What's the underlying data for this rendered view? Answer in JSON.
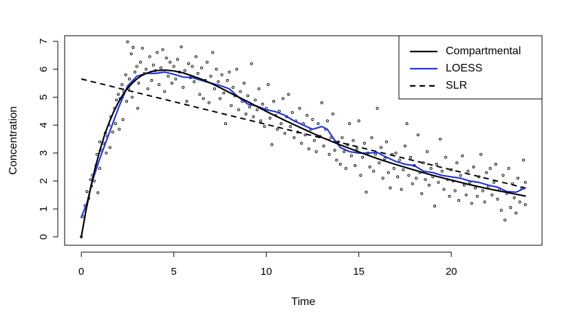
{
  "chart_data": {
    "type": "scatter",
    "title": "",
    "xlabel": "Time",
    "ylabel": "Concentration",
    "xlim": [
      -0.9,
      24.9
    ],
    "ylim": [
      -0.3,
      7.2
    ],
    "xticks": [
      0,
      5,
      10,
      15,
      20
    ],
    "yticks": [
      0,
      1,
      2,
      3,
      4,
      5,
      6,
      7
    ],
    "grid": false,
    "legend_position": "top-right",
    "series": [
      {
        "name": "Compartmental",
        "kind": "line",
        "style": "solid",
        "color": "#000000",
        "x": [
          0,
          0.25,
          0.5,
          0.75,
          1,
          1.25,
          1.5,
          1.75,
          2,
          2.25,
          2.5,
          2.75,
          3,
          3.25,
          3.5,
          3.75,
          4,
          4.5,
          5,
          5.5,
          6,
          6.5,
          7,
          7.5,
          8,
          9,
          10,
          11,
          12,
          13,
          14,
          15,
          16,
          17,
          18,
          19,
          20,
          21,
          22,
          23,
          24
        ],
        "y": [
          0,
          0.93,
          1.75,
          2.47,
          3.09,
          3.63,
          4.09,
          4.48,
          4.81,
          5.09,
          5.32,
          5.5,
          5.65,
          5.77,
          5.85,
          5.91,
          5.95,
          5.97,
          5.94,
          5.87,
          5.76,
          5.64,
          5.5,
          5.34,
          5.17,
          4.84,
          4.49,
          4.17,
          3.86,
          3.56,
          3.29,
          3.04,
          2.8,
          2.59,
          2.39,
          2.2,
          2.03,
          1.87,
          1.72,
          1.59,
          1.46
        ]
      },
      {
        "name": "LOESS",
        "kind": "line",
        "style": "solid",
        "color": "#2233dd",
        "x": [
          0,
          0.3,
          0.6,
          1,
          1.5,
          2,
          2.5,
          3,
          3.5,
          4,
          4.5,
          5,
          5.5,
          6,
          6.5,
          7,
          7.5,
          8,
          8.5,
          9,
          9.5,
          10,
          10.5,
          11,
          11.5,
          12,
          12.5,
          13,
          13.3,
          13.6,
          14,
          14.5,
          15,
          15.5,
          16,
          16.5,
          17,
          17.5,
          18,
          18.5,
          19,
          19.5,
          20,
          20.5,
          21,
          21.5,
          22,
          22.5,
          23,
          23.5,
          24
        ],
        "y": [
          0.7,
          1.2,
          2.0,
          2.8,
          3.7,
          4.6,
          5.4,
          5.75,
          5.85,
          5.85,
          5.9,
          5.82,
          5.72,
          5.7,
          5.6,
          5.5,
          5.42,
          5.3,
          5.0,
          4.75,
          4.68,
          4.55,
          4.48,
          4.35,
          4.15,
          4.0,
          3.85,
          3.95,
          3.85,
          3.55,
          3.2,
          3.05,
          3.0,
          3.0,
          3.02,
          2.85,
          2.7,
          2.6,
          2.55,
          2.35,
          2.3,
          2.2,
          2.15,
          2.1,
          2.0,
          1.95,
          1.85,
          1.78,
          1.62,
          1.6,
          1.75
        ]
      },
      {
        "name": "SLR",
        "kind": "line",
        "style": "dashed",
        "color": "#000000",
        "x": [
          0,
          24
        ],
        "y": [
          5.65,
          1.75
        ]
      }
    ],
    "points_color": "#000000",
    "points": [
      [
        0,
        0
      ],
      [
        0.1,
        0.72
      ],
      [
        0.2,
        1.12
      ],
      [
        0.3,
        1.62
      ],
      [
        0.4,
        1.38
      ],
      [
        0.5,
        2.05
      ],
      [
        0.55,
        1.82
      ],
      [
        0.6,
        2.2
      ],
      [
        0.7,
        2.0
      ],
      [
        0.8,
        2.55
      ],
      [
        0.85,
        2.95
      ],
      [
        0.9,
        1.58
      ],
      [
        1.0,
        3.4
      ],
      [
        1.0,
        2.45
      ],
      [
        1.1,
        3.1
      ],
      [
        1.2,
        3.35
      ],
      [
        1.3,
        3.72
      ],
      [
        1.35,
        3.0
      ],
      [
        1.4,
        3.6
      ],
      [
        1.5,
        4.0
      ],
      [
        1.55,
        3.2
      ],
      [
        1.6,
        4.3
      ],
      [
        1.7,
        3.75
      ],
      [
        1.8,
        4.6
      ],
      [
        1.85,
        4.05
      ],
      [
        1.9,
        4.9
      ],
      [
        2.0,
        5.1
      ],
      [
        2.05,
        3.85
      ],
      [
        2.1,
        4.95
      ],
      [
        2.2,
        5.45
      ],
      [
        2.25,
        4.2
      ],
      [
        2.3,
        5.2
      ],
      [
        2.4,
        5.8
      ],
      [
        2.45,
        4.85
      ],
      [
        2.5,
        6.98
      ],
      [
        2.55,
        5.3
      ],
      [
        2.6,
        5.65
      ],
      [
        2.7,
        6.55
      ],
      [
        2.75,
        5.0
      ],
      [
        2.8,
        6.78
      ],
      [
        2.9,
        5.9
      ],
      [
        3.0,
        6.1
      ],
      [
        3.05,
        4.6
      ],
      [
        3.1,
        5.5
      ],
      [
        3.2,
        6.25
      ],
      [
        3.3,
        6.75
      ],
      [
        3.4,
        5.85
      ],
      [
        3.5,
        6.0
      ],
      [
        3.6,
        5.3
      ],
      [
        3.7,
        6.45
      ],
      [
        3.8,
        5.6
      ],
      [
        3.9,
        6.15
      ],
      [
        4.0,
        5.95
      ],
      [
        4.1,
        6.6
      ],
      [
        4.2,
        5.45
      ],
      [
        4.3,
        6.05
      ],
      [
        4.4,
        6.7
      ],
      [
        4.5,
        5.2
      ],
      [
        4.6,
        6.4
      ],
      [
        4.7,
        5.75
      ],
      [
        4.8,
        6.25
      ],
      [
        4.9,
        5.5
      ],
      [
        5.0,
        6.1
      ],
      [
        5.1,
        5.65
      ],
      [
        5.2,
        6.35
      ],
      [
        5.3,
        5.9
      ],
      [
        5.4,
        6.8
      ],
      [
        5.5,
        5.35
      ],
      [
        5.6,
        5.95
      ],
      [
        5.7,
        4.85
      ],
      [
        5.8,
        6.2
      ],
      [
        5.9,
        5.7
      ],
      [
        6.0,
        6.1
      ],
      [
        6.1,
        5.55
      ],
      [
        6.2,
        6.45
      ],
      [
        6.3,
        5.85
      ],
      [
        6.4,
        5.1
      ],
      [
        6.5,
        6.05
      ],
      [
        6.6,
        4.95
      ],
      [
        6.7,
        5.6
      ],
      [
        6.8,
        6.25
      ],
      [
        6.9,
        4.8
      ],
      [
        7.0,
        5.75
      ],
      [
        7.1,
        6.6
      ],
      [
        7.2,
        5.3
      ],
      [
        7.3,
        6.0
      ],
      [
        7.4,
        5.55
      ],
      [
        7.5,
        4.95
      ],
      [
        7.6,
        5.8
      ],
      [
        7.7,
        5.15
      ],
      [
        7.8,
        4.05
      ],
      [
        7.9,
        5.6
      ],
      [
        8.0,
        5.9
      ],
      [
        8.1,
        4.7
      ],
      [
        8.2,
        5.35
      ],
      [
        8.3,
        5.05
      ],
      [
        8.4,
        6.0
      ],
      [
        8.5,
        4.55
      ],
      [
        8.6,
        5.2
      ],
      [
        8.7,
        4.85
      ],
      [
        8.8,
        5.5
      ],
      [
        8.9,
        4.4
      ],
      [
        9.0,
        5.05
      ],
      [
        9.1,
        4.65
      ],
      [
        9.2,
        6.2
      ],
      [
        9.3,
        4.3
      ],
      [
        9.4,
        4.9
      ],
      [
        9.5,
        4.55
      ],
      [
        9.6,
        5.3
      ],
      [
        9.7,
        4.15
      ],
      [
        9.8,
        4.75
      ],
      [
        9.9,
        3.95
      ],
      [
        10.0,
        4.6
      ],
      [
        10.1,
        5.45
      ],
      [
        10.2,
        4.25
      ],
      [
        10.3,
        3.3
      ],
      [
        10.4,
        4.85
      ],
      [
        10.5,
        4.35
      ],
      [
        10.6,
        3.85
      ],
      [
        10.7,
        4.5
      ],
      [
        10.8,
        4.05
      ],
      [
        10.9,
        4.95
      ],
      [
        11.0,
        3.7
      ],
      [
        11.1,
        4.3
      ],
      [
        11.2,
        5.1
      ],
      [
        11.3,
        3.95
      ],
      [
        11.4,
        4.45
      ],
      [
        11.5,
        3.55
      ],
      [
        11.6,
        4.15
      ],
      [
        11.7,
        3.75
      ],
      [
        11.8,
        4.6
      ],
      [
        11.9,
        3.35
      ],
      [
        12.0,
        4.05
      ],
      [
        12.1,
        3.65
      ],
      [
        12.2,
        4.35
      ],
      [
        12.3,
        3.15
      ],
      [
        12.4,
        3.85
      ],
      [
        12.5,
        4.2
      ],
      [
        12.6,
        3.45
      ],
      [
        12.7,
        3.05
      ],
      [
        12.8,
        4.05
      ],
      [
        12.9,
        3.6
      ],
      [
        13.0,
        4.8
      ],
      [
        13.1,
        3.25
      ],
      [
        13.2,
        3.85
      ],
      [
        13.3,
        4.15
      ],
      [
        13.4,
        2.95
      ],
      [
        13.5,
        3.55
      ],
      [
        13.6,
        4.4
      ],
      [
        13.7,
        3.1
      ],
      [
        13.8,
        2.75
      ],
      [
        13.9,
        3.4
      ],
      [
        14.0,
        2.6
      ],
      [
        14.1,
        3.55
      ],
      [
        14.2,
        3.05
      ],
      [
        14.3,
        2.45
      ],
      [
        14.4,
        3.3
      ],
      [
        14.5,
        4.05
      ],
      [
        14.6,
        2.9
      ],
      [
        14.7,
        3.45
      ],
      [
        14.8,
        2.55
      ],
      [
        14.9,
        3.15
      ],
      [
        15.0,
        4.15
      ],
      [
        15.1,
        2.2
      ],
      [
        15.2,
        2.85
      ],
      [
        15.3,
        3.35
      ],
      [
        15.4,
        1.6
      ],
      [
        15.5,
        3.0
      ],
      [
        15.6,
        2.5
      ],
      [
        15.7,
        3.55
      ],
      [
        15.8,
        2.35
      ],
      [
        15.9,
        2.95
      ],
      [
        16.0,
        4.6
      ],
      [
        16.1,
        2.65
      ],
      [
        16.2,
        3.2
      ],
      [
        16.3,
        2.1
      ],
      [
        16.4,
        2.8
      ],
      [
        16.5,
        3.4
      ],
      [
        16.6,
        2.3
      ],
      [
        16.7,
        1.75
      ],
      [
        16.8,
        2.95
      ],
      [
        16.9,
        2.45
      ],
      [
        17.0,
        3.0
      ],
      [
        17.1,
        2.15
      ],
      [
        17.2,
        2.75
      ],
      [
        17.3,
        1.7
      ],
      [
        17.4,
        2.4
      ],
      [
        17.5,
        3.25
      ],
      [
        17.6,
        4.05
      ],
      [
        17.7,
        2.2
      ],
      [
        17.8,
        2.85
      ],
      [
        17.9,
        1.9
      ],
      [
        18.0,
        2.55
      ],
      [
        18.1,
        2.1
      ],
      [
        18.2,
        3.65
      ],
      [
        18.3,
        2.3
      ],
      [
        18.4,
        1.55
      ],
      [
        18.5,
        2.65
      ],
      [
        18.6,
        2.05
      ],
      [
        18.7,
        3.05
      ],
      [
        18.8,
        1.85
      ],
      [
        18.9,
        2.45
      ],
      [
        19.0,
        2.15
      ],
      [
        19.1,
        1.1
      ],
      [
        19.2,
        2.6
      ],
      [
        19.3,
        1.95
      ],
      [
        19.4,
        3.5
      ],
      [
        19.5,
        2.35
      ],
      [
        19.6,
        1.7
      ],
      [
        19.7,
        2.85
      ],
      [
        19.8,
        2.05
      ],
      [
        19.9,
        1.45
      ],
      [
        20.0,
        2.4
      ],
      [
        20.1,
        2.0
      ],
      [
        20.2,
        1.65
      ],
      [
        20.3,
        2.65
      ],
      [
        20.4,
        1.3
      ],
      [
        20.5,
        2.2
      ],
      [
        20.6,
        2.9
      ],
      [
        20.7,
        1.85
      ],
      [
        20.8,
        1.5
      ],
      [
        20.9,
        2.35
      ],
      [
        21.0,
        1.95
      ],
      [
        21.1,
        1.2
      ],
      [
        21.2,
        2.5
      ],
      [
        21.3,
        1.75
      ],
      [
        21.4,
        1.45
      ],
      [
        21.5,
        2.15
      ],
      [
        21.6,
        2.95
      ],
      [
        21.7,
        1.65
      ],
      [
        21.8,
        1.25
      ],
      [
        21.9,
        2.3
      ],
      [
        22.0,
        1.8
      ],
      [
        22.1,
        2.45
      ],
      [
        22.2,
        1.5
      ],
      [
        22.3,
        1.95
      ],
      [
        22.4,
        2.6
      ],
      [
        22.5,
        1.35
      ],
      [
        22.6,
        1.7
      ],
      [
        22.7,
        0.95
      ],
      [
        22.8,
        2.2
      ],
      [
        22.9,
        0.6
      ],
      [
        23.0,
        1.55
      ],
      [
        23.1,
        2.45
      ],
      [
        23.2,
        1.05
      ],
      [
        23.3,
        1.9
      ],
      [
        23.4,
        1.4
      ],
      [
        23.5,
        0.85
      ],
      [
        23.6,
        2.1
      ],
      [
        23.7,
        1.25
      ],
      [
        23.8,
        1.75
      ],
      [
        23.9,
        2.75
      ],
      [
        24.0,
        1.95
      ],
      [
        24.0,
        1.15
      ]
    ]
  }
}
